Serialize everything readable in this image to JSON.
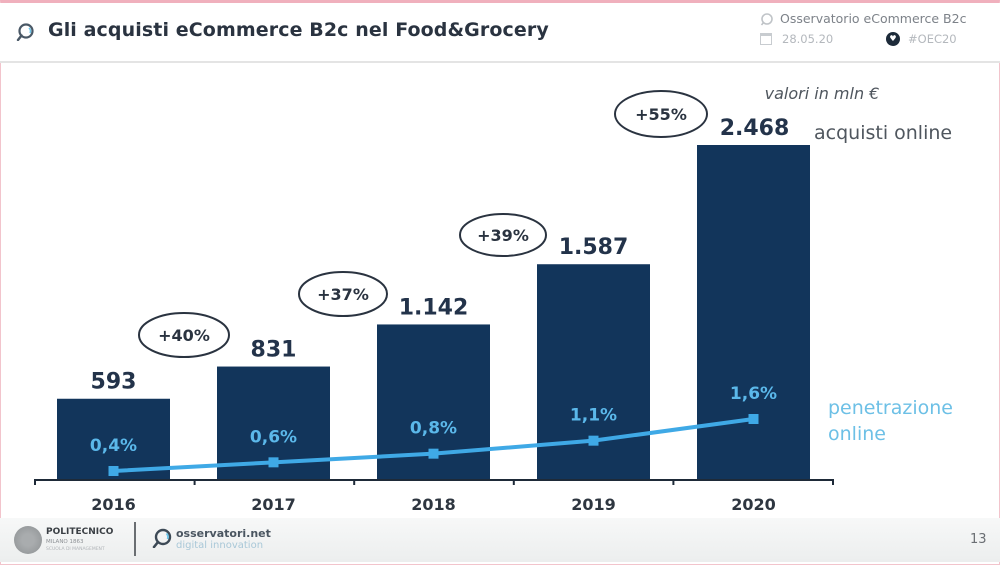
{
  "header": {
    "title": "Gli acquisti eCommerce B2c nel Food&Grocery",
    "source": "Osservatorio eCommerce B2c",
    "date": "28.05.20",
    "hashtag": "#OEC20"
  },
  "footer": {
    "logo_left_name": "POLITECNICO",
    "logo_left_sub": "MILANO 1863",
    "logo_left_sub2": "SCUOLA DI MANAGEMENT",
    "logo_right_name": "osservatori.net",
    "logo_right_sub": "digital innovation",
    "page_number": "13"
  },
  "colors": {
    "bar": "#12355b",
    "line": "#3fa9e6",
    "bar_label": "#23334a",
    "pct_label": "#5bb8ea",
    "legend_line": "#6dc0e6",
    "legend_bar": "#4f565e"
  },
  "chart_data": {
    "type": "bar",
    "title": "Gli acquisti eCommerce B2c nel Food&Grocery",
    "unit_note": "valori in mln €",
    "categories": [
      "2016",
      "2017",
      "2018",
      "2019",
      "2020"
    ],
    "series": [
      {
        "name": "acquisti online",
        "type": "bar",
        "values": [
          593,
          831,
          1142,
          1587,
          2468
        ],
        "labels": [
          "593",
          "831",
          "1.142",
          "1.587",
          "2.468"
        ]
      },
      {
        "name": "penetrazione online",
        "type": "line",
        "values": [
          0.4,
          0.6,
          0.8,
          1.1,
          1.6
        ],
        "labels": [
          "0,4%",
          "0,6%",
          "0,8%",
          "1,1%",
          "1,6%"
        ]
      }
    ],
    "growth_labels": [
      "+40%",
      "+37%",
      "+39%",
      "+55%"
    ],
    "legend": {
      "bar": "acquisti online",
      "line_line1": "penetrazione",
      "line_line2": "online"
    },
    "ylim": [
      0,
      2468
    ],
    "grid": false,
    "legend_position": "right"
  }
}
